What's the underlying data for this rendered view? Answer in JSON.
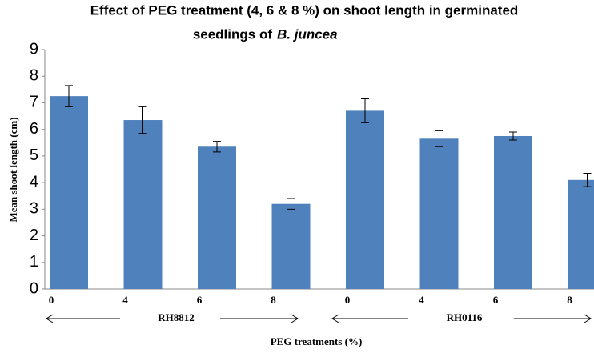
{
  "chart_data": {
    "type": "bar",
    "title": [
      "Effect of PEG treatment (4, 6 & 8 %) on shoot length in germinated",
      "seedlings of",
      "B. juncea"
    ],
    "categories": [
      "0",
      "4",
      "6",
      "8",
      "0",
      "4",
      "6",
      "8"
    ],
    "values": [
      7.25,
      6.35,
      5.35,
      3.2,
      6.7,
      5.65,
      5.75,
      4.1
    ],
    "errors": [
      0.4,
      0.5,
      0.2,
      0.2,
      0.45,
      0.3,
      0.15,
      0.25
    ],
    "groups": [
      "RH8812",
      "RH0116"
    ],
    "color": "#4f81bd",
    "ylim": [
      0,
      9
    ],
    "yticks": [
      0,
      1,
      2,
      3,
      4,
      5,
      6,
      7,
      8,
      9
    ],
    "ylabel": "Mean shoot length (cm)",
    "xlabel": "PEG treatments (%)"
  }
}
